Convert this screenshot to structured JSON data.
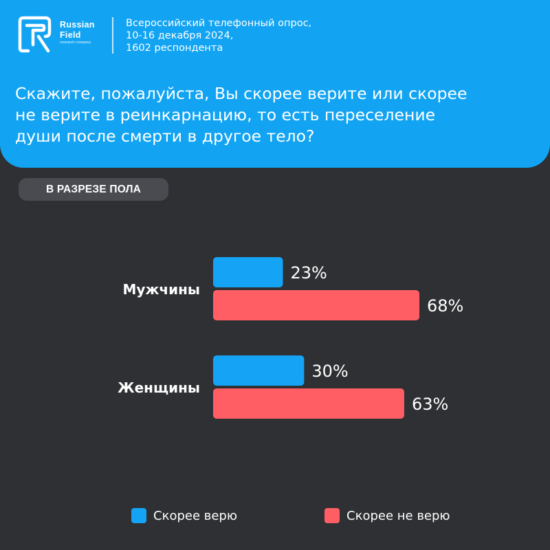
{
  "brand": {
    "name_line1": "Russian",
    "name_line2": "Field",
    "tagline": "research company"
  },
  "survey_info": {
    "line1": "Всероссийский телефонный опрос,",
    "line2": "10-16 декабря 2024,",
    "line3": "1602 респондента"
  },
  "question": "Скажите, пожалуйста, Вы скорее  верите или скорее\nне верите в  реинкарнацию, то есть переселение\nдуши после смерти в другое тело?",
  "badge": "В РАЗРЕЗЕ ПОЛА",
  "colors": {
    "header": "#12a4f3",
    "background": "#2e3033",
    "believe": "#15a4f5",
    "not_believe": "#ff5f64"
  },
  "chart_data": {
    "type": "bar",
    "orientation": "horizontal",
    "categories": [
      "Мужчины",
      "Женщины"
    ],
    "series": [
      {
        "name": "Скорее верю",
        "values": [
          23,
          30
        ],
        "labels": [
          "23%",
          "30%"
        ],
        "color": "#15a4f5"
      },
      {
        "name": "Скорее не верю",
        "values": [
          68,
          63
        ],
        "labels": [
          "68%",
          "63%"
        ],
        "color": "#ff5f64"
      }
    ],
    "unit": "%",
    "xlim": [
      0,
      100
    ],
    "grid": false,
    "legend": "bottom"
  }
}
